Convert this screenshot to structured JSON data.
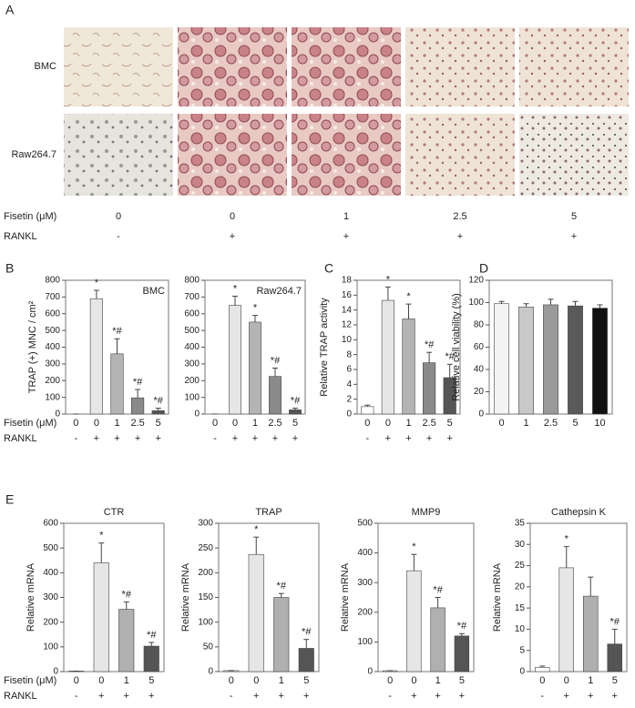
{
  "panel_a": {
    "label": "A",
    "rows": [
      "BMC",
      "Raw264.7"
    ],
    "fisetin": [
      "0",
      "0",
      "1",
      "2.5",
      "5"
    ],
    "rankl": [
      "-",
      "+",
      "+",
      "+",
      "+"
    ]
  },
  "row_labels": {
    "fisetin": "Fisetin (μM)",
    "rankl": "RANKL"
  },
  "chart_data": [
    {
      "type": "bar",
      "panel": "B",
      "inset": "BMC",
      "y_label": "TRAP (+) MNC / cm²",
      "categories": [
        "0",
        "0",
        "1",
        "2.5",
        "5"
      ],
      "rankl": [
        "-",
        "+",
        "+",
        "+",
        "+"
      ],
      "values": [
        0,
        690,
        360,
        97,
        20
      ],
      "errors": [
        0,
        50,
        90,
        50,
        15
      ],
      "marks": [
        null,
        "*",
        "*#",
        "*#",
        "*#"
      ],
      "colors": [
        "#ffffff",
        "#e6e6e6",
        "#b4b4b4",
        "#8a8a8a",
        "#555555"
      ],
      "ylim": [
        0,
        800
      ],
      "yticks": [
        0,
        100,
        200,
        300,
        400,
        500,
        600,
        700,
        800
      ]
    },
    {
      "type": "bar",
      "inset": "Raw264.7",
      "categories": [
        "0",
        "0",
        "1",
        "2.5",
        "5"
      ],
      "rankl": [
        "-",
        "+",
        "+",
        "+",
        "+"
      ],
      "values": [
        0,
        650,
        550,
        225,
        25
      ],
      "errors": [
        0,
        55,
        40,
        50,
        10
      ],
      "marks": [
        null,
        "*",
        "*",
        "*#",
        "*#"
      ],
      "colors": [
        "#ffffff",
        "#e6e6e6",
        "#b4b4b4",
        "#8a8a8a",
        "#555555"
      ],
      "ylim": [
        0,
        800
      ],
      "yticks": [
        0,
        100,
        200,
        300,
        400,
        500,
        600,
        700,
        800
      ]
    },
    {
      "type": "bar",
      "panel": "C",
      "y_label": "Relative TRAP activity",
      "categories": [
        "0",
        "0",
        "1",
        "2.5",
        "5"
      ],
      "rankl": [
        "-",
        "+",
        "+",
        "+",
        "+"
      ],
      "values": [
        1.0,
        15.3,
        12.8,
        6.9,
        4.9
      ],
      "errors": [
        0.2,
        1.8,
        2.0,
        1.4,
        1.8
      ],
      "marks": [
        null,
        "*",
        "*",
        "*#",
        "*#"
      ],
      "colors": [
        "#ffffff",
        "#e6e6e6",
        "#b4b4b4",
        "#8a8a8a",
        "#555555"
      ],
      "ylim": [
        0,
        18
      ],
      "yticks": [
        0,
        2,
        4,
        6,
        8,
        10,
        12,
        14,
        16,
        18
      ]
    },
    {
      "type": "bar",
      "panel": "D",
      "y_label": "Relative  cell viability (%)",
      "categories": [
        "0",
        "1",
        "2.5",
        "5",
        "10"
      ],
      "values": [
        99,
        96,
        98,
        97,
        95
      ],
      "errors": [
        2,
        3,
        5,
        4,
        3
      ],
      "marks": [
        null,
        null,
        null,
        null,
        null
      ],
      "colors": [
        "#f4f4f4",
        "#c8c8c8",
        "#9a9a9a",
        "#5a5a5a",
        "#111111"
      ],
      "ylim": [
        0,
        120
      ],
      "yticks": [
        0,
        20,
        40,
        60,
        80,
        100,
        120
      ]
    },
    {
      "type": "bar",
      "panel": "E",
      "title": "CTR",
      "y_label": "Relative mRNA",
      "categories": [
        "0",
        "0",
        "1",
        "5"
      ],
      "rankl": [
        "-",
        "+",
        "+",
        "+"
      ],
      "values": [
        2,
        440,
        252,
        103
      ],
      "errors": [
        0,
        80,
        30,
        15
      ],
      "marks": [
        null,
        "*",
        "*#",
        "*#"
      ],
      "colors": [
        "#ffffff",
        "#e6e6e6",
        "#b0b0b0",
        "#555555"
      ],
      "ylim": [
        0,
        600
      ],
      "yticks": [
        0,
        100,
        200,
        300,
        400,
        500,
        600
      ]
    },
    {
      "type": "bar",
      "title": "TRAP",
      "y_label": "Relative mRNA",
      "categories": [
        "0",
        "0",
        "1",
        "5"
      ],
      "rankl": [
        "-",
        "+",
        "+",
        "+"
      ],
      "values": [
        2,
        237,
        150,
        47
      ],
      "errors": [
        0,
        35,
        8,
        18
      ],
      "marks": [
        null,
        "*",
        "*#",
        "*#"
      ],
      "colors": [
        "#ffffff",
        "#e6e6e6",
        "#b0b0b0",
        "#555555"
      ],
      "ylim": [
        0,
        300
      ],
      "yticks": [
        0,
        50,
        100,
        150,
        200,
        250,
        300
      ]
    },
    {
      "type": "bar",
      "title": "MMP9",
      "y_label": "Relative mRNA",
      "categories": [
        "0",
        "0",
        "1",
        "5"
      ],
      "rankl": [
        "-",
        "+",
        "+",
        "+"
      ],
      "values": [
        3,
        340,
        215,
        120
      ],
      "errors": [
        0,
        55,
        35,
        8
      ],
      "marks": [
        null,
        "*",
        "*#",
        "*#"
      ],
      "colors": [
        "#ffffff",
        "#e6e6e6",
        "#b0b0b0",
        "#555555"
      ],
      "ylim": [
        0,
        500
      ],
      "yticks": [
        0,
        100,
        200,
        300,
        400,
        500
      ]
    },
    {
      "type": "bar",
      "title": "Cathepsin K",
      "y_label": "Relative mRNA",
      "categories": [
        "0",
        "0",
        "1",
        "5"
      ],
      "rankl": [
        "-",
        "+",
        "+",
        "+"
      ],
      "values": [
        1,
        24.5,
        17.8,
        6.5
      ],
      "errors": [
        0.3,
        5,
        4.5,
        3.5
      ],
      "marks": [
        null,
        "*",
        null,
        "*#"
      ],
      "colors": [
        "#ffffff",
        "#e6e6e6",
        "#b0b0b0",
        "#555555"
      ],
      "ylim": [
        0,
        35
      ],
      "yticks": [
        0,
        5,
        10,
        15,
        20,
        25,
        30,
        35
      ]
    }
  ]
}
